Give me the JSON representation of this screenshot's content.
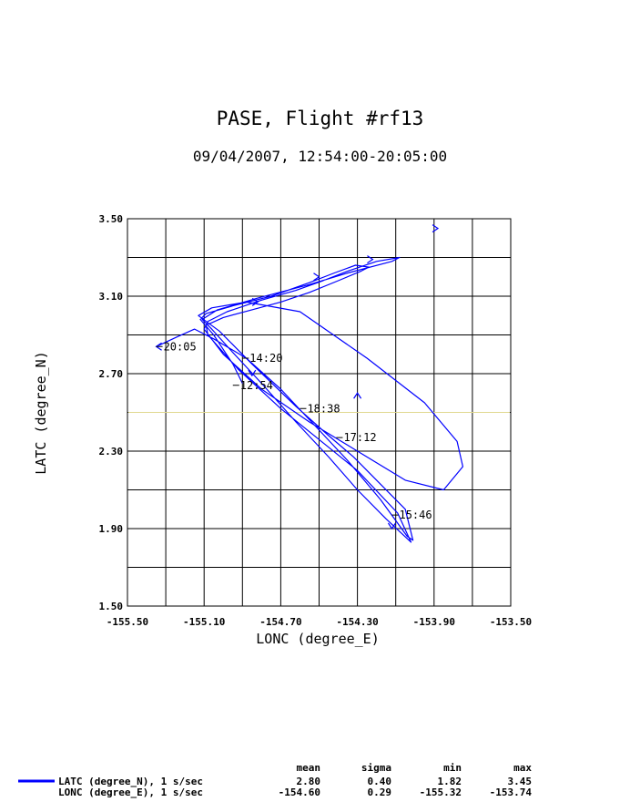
{
  "chart_data": {
    "type": "line",
    "title": "PASE, Flight #rf13",
    "subtitle": "09/04/2007, 12:54:00-20:05:00",
    "xlabel": "LONC (degree_E)",
    "ylabel": "LATC (degree_N)",
    "xlim": [
      -155.5,
      -153.5
    ],
    "ylim": [
      1.5,
      3.5
    ],
    "xticks": [
      "-155.50",
      "-155.10",
      "-154.70",
      "-154.30",
      "-153.90",
      "-153.50"
    ],
    "yticks": [
      "1.50",
      "1.90",
      "2.30",
      "2.70",
      "3.10",
      "3.50"
    ],
    "grid": true,
    "line_color": "#0000ff",
    "reference_line": {
      "y": 2.5,
      "color": "#e0d890"
    },
    "series": [
      {
        "name": "flight track",
        "x": [
          -154.9,
          -154.95,
          -155.05,
          -155.12,
          -155.09,
          -154.95,
          -154.75,
          -154.55,
          -154.42,
          -154.31,
          -154.24,
          -154.28,
          -154.4,
          -154.55,
          -154.7,
          -154.85,
          -155.0,
          -155.09,
          -155.08,
          -154.92,
          -154.7,
          -154.5,
          -154.3,
          -154.09,
          -154.02,
          -154.15,
          -154.3,
          -154.45,
          -154.62,
          -154.8,
          -154.96,
          -155.06,
          -155.11,
          -155.03,
          -154.82,
          -154.55,
          -154.35,
          -154.12,
          -154.08,
          -154.2,
          -154.35,
          -154.48,
          -154.62,
          -154.8,
          -154.98,
          -155.08,
          -155.1,
          -155.0,
          -154.8,
          -154.55,
          -154.3,
          -154.05,
          -153.85,
          -153.75,
          -153.78,
          -153.95,
          -154.25,
          -154.6,
          -154.88,
          -155.06,
          -155.13,
          -155.02,
          -154.85,
          -154.62,
          -154.45,
          -154.32,
          -154.05,
          -154.01,
          -154.04,
          -154.18,
          -154.35,
          -154.52,
          -154.7,
          -154.88,
          -155.05,
          -155.15,
          -155.24,
          -155.35
        ],
        "y": [
          2.65,
          2.75,
          2.9,
          2.98,
          3.01,
          3.05,
          3.1,
          3.17,
          3.22,
          3.26,
          3.25,
          3.23,
          3.18,
          3.12,
          3.07,
          3.03,
          2.99,
          2.95,
          2.9,
          2.72,
          2.52,
          2.36,
          2.2,
          1.98,
          1.83,
          1.95,
          2.1,
          2.27,
          2.45,
          2.65,
          2.82,
          2.93,
          2.98,
          3.03,
          3.09,
          3.16,
          3.22,
          3.28,
          3.3,
          3.28,
          3.23,
          3.18,
          3.13,
          3.08,
          3.02,
          2.97,
          2.93,
          2.8,
          2.62,
          2.45,
          2.3,
          2.15,
          2.1,
          2.22,
          2.35,
          2.55,
          2.78,
          3.02,
          3.07,
          3.04,
          3.0,
          2.92,
          2.75,
          2.53,
          2.38,
          2.27,
          2.0,
          1.84,
          1.86,
          2.05,
          2.25,
          2.43,
          2.62,
          2.78,
          2.88,
          2.93,
          2.89,
          2.84
        ]
      }
    ],
    "arrows": [
      {
        "x": -153.88,
        "y": 3.45,
        "dir": 0
      },
      {
        "x": -154.22,
        "y": 3.29,
        "dir": 0
      },
      {
        "x": -154.5,
        "y": 3.2,
        "dir": 0
      },
      {
        "x": -154.82,
        "y": 3.07,
        "dir": 0
      },
      {
        "x": -154.85,
        "y": 2.69,
        "dir": 1
      },
      {
        "x": -154.3,
        "y": 2.6,
        "dir": 2
      },
      {
        "x": -154.12,
        "y": 1.9,
        "dir": 1
      },
      {
        "x": -155.35,
        "y": 2.84,
        "dir": 3
      }
    ],
    "annotations": [
      {
        "text": "20:05",
        "x": -155.35,
        "y": 2.84
      },
      {
        "text": "14:20",
        "x": -154.9,
        "y": 2.78
      },
      {
        "text": "12:54",
        "x": -154.95,
        "y": 2.64
      },
      {
        "text": "18:38",
        "x": -154.6,
        "y": 2.52
      },
      {
        "text": "17:12",
        "x": -154.41,
        "y": 2.37
      },
      {
        "text": "15:46",
        "x": -154.12,
        "y": 1.97
      }
    ]
  },
  "legend": {
    "headers": {
      "mean": "mean",
      "sigma": "sigma",
      "min": "min",
      "max": "max"
    },
    "rows": [
      {
        "label": "LATC (degree_N), 1 s/sec",
        "mean": "2.80",
        "sigma": "0.40",
        "min": "1.82",
        "max": "3.45",
        "color": "#0000ff"
      },
      {
        "label": "LONC (degree_E), 1 s/sec",
        "mean": "-154.60",
        "sigma": "0.29",
        "min": "-155.32",
        "max": "-153.74"
      }
    ]
  }
}
